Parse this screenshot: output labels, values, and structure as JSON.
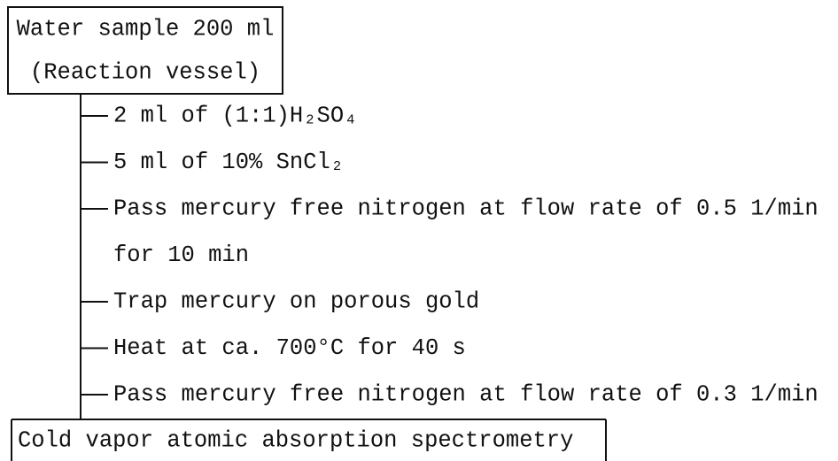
{
  "start": {
    "lines": [
      "Water sample 200 ml",
      "(Reaction vessel)"
    ]
  },
  "steps": [
    [
      "2 ml of (1:1)H₂SO₄"
    ],
    [
      "5 ml of 10% SnCl₂"
    ],
    [
      "Pass mercury free nitrogen at flow rate of 0.5 1/min",
      "for 10 min"
    ],
    [
      "Trap mercury on porous gold"
    ],
    [
      "Heat at ca. 700°C for 40 s"
    ],
    [
      "Pass mercury free nitrogen at flow rate of 0.3 1/min"
    ]
  ],
  "end": {
    "label": "Cold vapor atomic absorption spectrometry"
  }
}
